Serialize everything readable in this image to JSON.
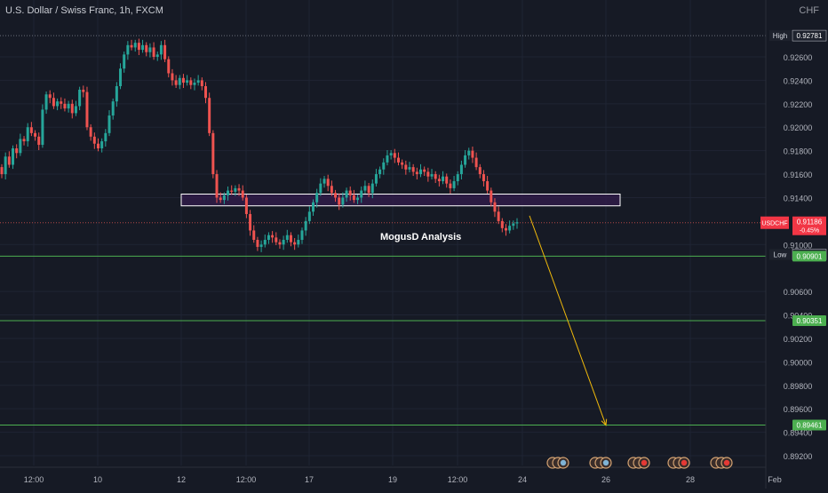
{
  "header": {
    "title": "U.S. Dollar / Swiss Franc, 1h, FXCM",
    "currency": "CHF"
  },
  "watermark": "MogusD Analysis",
  "symbol_label": {
    "symbol": "USDCHF",
    "price": "0.91186",
    "change": "-0.45%"
  },
  "high_label": {
    "tag": "High",
    "value": "0.92781"
  },
  "low_label": {
    "tag": "Low",
    "value": "0.90915"
  },
  "colors": {
    "background": "#161a25",
    "up": "#26a69a",
    "down": "#ef5350",
    "level_line": "#4caf50",
    "zone_border": "#ffffff",
    "zone_fill": "#311b4a",
    "arrow": "#f0b90b",
    "symbol_badge": "#f23645"
  },
  "chart_data": {
    "type": "candlestick",
    "title": "U.S. Dollar / Swiss Franc, 1h, FXCM",
    "y_ticks": [
      "0.92600",
      "0.92400",
      "0.92200",
      "0.92000",
      "0.91800",
      "0.91600",
      "0.91400",
      "0.91000",
      "0.90600",
      "0.90400",
      "0.90200",
      "0.90000",
      "0.89800",
      "0.89600",
      "0.89400",
      "0.89200"
    ],
    "ylim": [
      0.8912,
      0.929
    ],
    "x_ticks": [
      "12:00",
      "10",
      "12",
      "12:00",
      "17",
      "19",
      "12:00",
      "24",
      "26",
      "28",
      "Feb"
    ],
    "levels": [
      {
        "price": 0.90901,
        "label": "0.90901"
      },
      {
        "price": 0.90351,
        "label": "0.90351"
      },
      {
        "price": 0.89461,
        "label": "0.89461"
      }
    ],
    "zone": {
      "low": 0.9133,
      "high": 0.9143
    },
    "high_price": 0.92781,
    "low_price": 0.90915,
    "last_price": 0.91186,
    "projection": {
      "start_price": 0.912,
      "end_price": 0.8946
    },
    "candles_close": [
      0.916,
      0.9175,
      0.9168,
      0.9182,
      0.9178,
      0.919,
      0.9188,
      0.92,
      0.9195,
      0.9192,
      0.9185,
      0.9215,
      0.9228,
      0.9225,
      0.9218,
      0.9222,
      0.922,
      0.9216,
      0.922,
      0.9212,
      0.9218,
      0.9232,
      0.923,
      0.92,
      0.9192,
      0.9186,
      0.9182,
      0.9188,
      0.9195,
      0.921,
      0.9222,
      0.9235,
      0.925,
      0.9262,
      0.927,
      0.9268,
      0.9272,
      0.9266,
      0.927,
      0.9264,
      0.9268,
      0.926,
      0.9262,
      0.927,
      0.9258,
      0.9246,
      0.924,
      0.9236,
      0.9242,
      0.9238,
      0.924,
      0.9236,
      0.9238,
      0.924,
      0.9235,
      0.9225,
      0.9195,
      0.916,
      0.914,
      0.9138,
      0.9142,
      0.9146,
      0.9145,
      0.9148,
      0.9146,
      0.914,
      0.9126,
      0.9112,
      0.9104,
      0.9098,
      0.91,
      0.9104,
      0.9108,
      0.9106,
      0.9102,
      0.91,
      0.9104,
      0.9108,
      0.9102,
      0.91,
      0.9104,
      0.9112,
      0.912,
      0.9128,
      0.9136,
      0.9144,
      0.9152,
      0.9156,
      0.915,
      0.9144,
      0.914,
      0.9134,
      0.914,
      0.9146,
      0.9142,
      0.9138,
      0.914,
      0.9146,
      0.915,
      0.9144,
      0.9152,
      0.916,
      0.9164,
      0.917,
      0.9176,
      0.9178,
      0.9174,
      0.917,
      0.9168,
      0.9164,
      0.9166,
      0.9162,
      0.916,
      0.9164,
      0.9162,
      0.9158,
      0.916,
      0.9156,
      0.9154,
      0.9158,
      0.9152,
      0.9148,
      0.9154,
      0.916,
      0.9168,
      0.9176,
      0.918,
      0.9174,
      0.9166,
      0.916,
      0.9154,
      0.9146,
      0.9136,
      0.9128,
      0.912,
      0.9114,
      0.9112,
      0.9116,
      0.9118,
      0.9119
    ]
  },
  "event_icons": [
    {
      "label": "event-group-1"
    },
    {
      "label": "event-group-2"
    },
    {
      "label": "event-group-3"
    },
    {
      "label": "event-group-4"
    },
    {
      "label": "event-group-5"
    }
  ]
}
